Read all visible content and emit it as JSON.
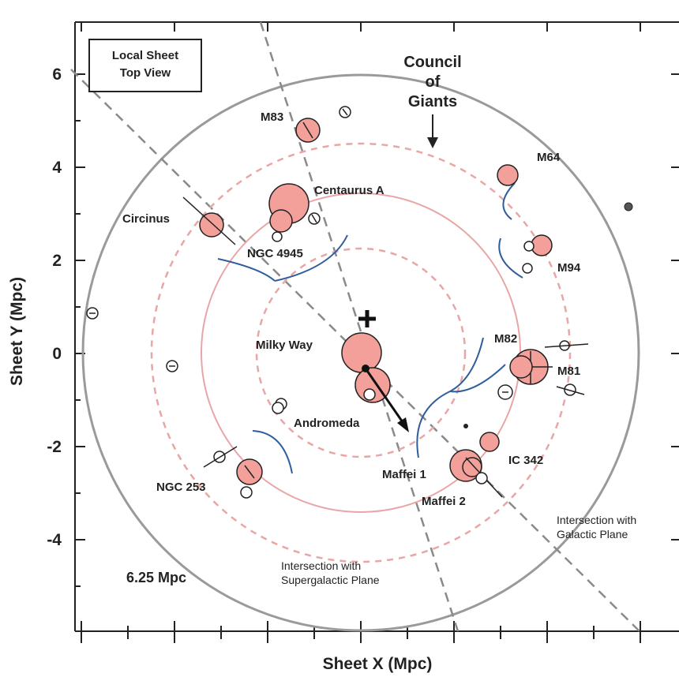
{
  "diagram": {
    "x_axis_title": "Sheet X (Mpc)",
    "y_axis_title": "Sheet Y (Mpc)",
    "x_ticks": [],
    "y_ticks": [
      "6",
      "4",
      "2",
      "0",
      "-2",
      "-4"
    ],
    "legend_box": {
      "line1": "Local Sheet",
      "line2": "Top View"
    },
    "council_label": {
      "line1": "Council",
      "line2": "of",
      "line3": "Giants"
    },
    "scale_label": "6.25 Mpc",
    "galactic_plane_note": {
      "line1": "Intersection with",
      "line2": "Galactic Plane"
    },
    "supergalactic_plane_note": {
      "line1": "Intersection with",
      "line2": "Supergalactic Plane"
    },
    "galaxy_labels": {
      "m83": "M83",
      "m64": "M64",
      "centaurus_a": "Centaurus A",
      "circinus": "Circinus",
      "ngc4945": "NGC 4945",
      "m94": "M94",
      "milky_way": "Milky Way",
      "m82": "M82",
      "m81": "M81",
      "andromeda": "Andromeda",
      "ic342": "IC 342",
      "maffei1": "Maffei 1",
      "maffei2": "Maffei 2",
      "ngc253": "NGC 253"
    },
    "colors": {
      "galaxy_fill": "#f4a09a",
      "ring": "#e8a6a6",
      "outer_circle": "#9a9a9a",
      "arc": "#2f5d9e",
      "axis": "#222222",
      "plane_line": "#8a8a8a"
    }
  }
}
